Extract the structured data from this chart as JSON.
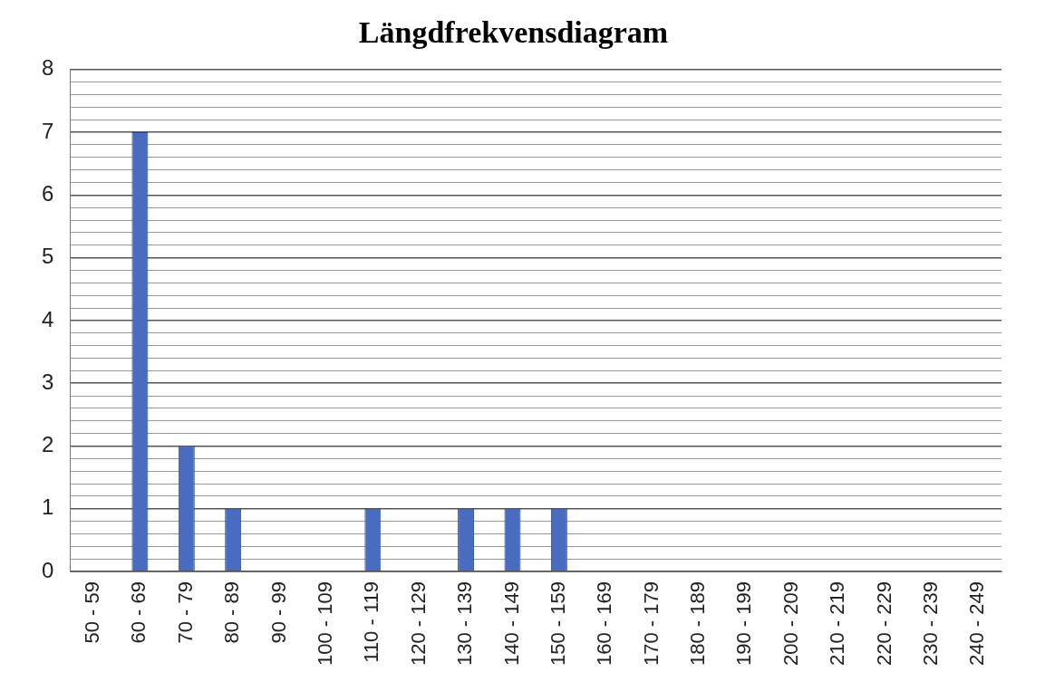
{
  "chart_data": {
    "type": "bar",
    "title": "Längdfrekvensdiagram",
    "categories": [
      "50 - 59",
      "60 - 69",
      "70 - 79",
      "80 - 89",
      "90 - 99",
      "100 - 109",
      "110 - 119",
      "120 - 129",
      "130 - 139",
      "140 - 149",
      "150 - 159",
      "160 - 169",
      "170 - 179",
      "180 - 189",
      "190 - 199",
      "200 - 209",
      "210 - 219",
      "220 - 229",
      "230 - 239",
      "240 - 249"
    ],
    "values": [
      0,
      7,
      2,
      1,
      0,
      0,
      1,
      0,
      1,
      1,
      1,
      0,
      0,
      0,
      0,
      0,
      0,
      0,
      0,
      0
    ],
    "color": "#4a6cc0",
    "ylim": [
      0,
      8
    ],
    "yticks": [
      0,
      {
        "value": 0.2,
        "label": null
      },
      {
        "value": 0.4,
        "label": null
      },
      {
        "value": 0.6,
        "label": null
      },
      {
        "value": 0.8,
        "label": null
      },
      1,
      {
        "value": 1.2,
        "label": null
      },
      {
        "value": 1.4,
        "label": null
      },
      {
        "value": 1.6,
        "label": null
      },
      {
        "value": 1.8,
        "label": null
      },
      2,
      {
        "value": 2.2,
        "label": null
      },
      {
        "value": 2.4,
        "label": null
      },
      {
        "value": 2.6,
        "label": null
      },
      {
        "value": 2.8,
        "label": null
      },
      3,
      {
        "value": 3.2,
        "label": null
      },
      {
        "value": 3.4,
        "label": null
      },
      {
        "value": 3.6,
        "label": null
      },
      {
        "value": 3.8,
        "label": null
      },
      4,
      {
        "value": 4.2,
        "label": null
      },
      {
        "value": 4.4,
        "label": null
      },
      {
        "value": 4.6,
        "label": null
      },
      {
        "value": 4.8,
        "label": null
      },
      5,
      {
        "value": 5.2,
        "label": null
      },
      {
        "value": 5.4,
        "label": null
      },
      {
        "value": 5.6,
        "label": null
      },
      {
        "value": 5.8,
        "label": null
      },
      6,
      {
        "value": 6.2,
        "label": null
      },
      {
        "value": 6.4,
        "label": null
      },
      {
        "value": 6.6,
        "label": null
      },
      {
        "value": 6.8,
        "label": null
      },
      7,
      {
        "value": 7.2,
        "label": null
      },
      {
        "value": 7.4,
        "label": null
      },
      {
        "value": 7.6,
        "label": null
      },
      {
        "value": 7.8,
        "label": null
      },
      8
    ],
    "grid": "y",
    "legend": false
  }
}
